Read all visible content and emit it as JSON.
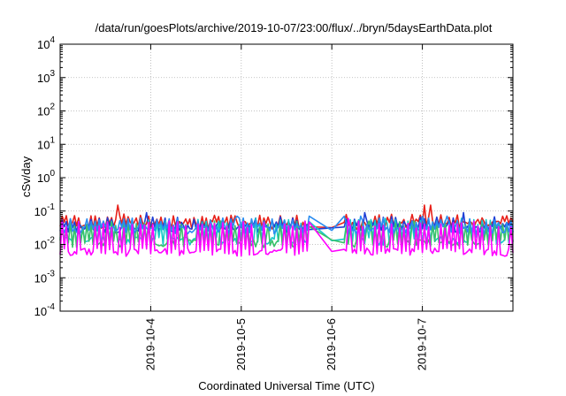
{
  "chart_data": {
    "type": "line",
    "title": "/data/run/goesPlots/archive/2019-10-07/23:00/flux/../bryn/5daysEarthData.plot",
    "xlabel": "Coordinated Universal Time (UTC)",
    "ylabel": "cSv/day",
    "yscale": "log",
    "ylim": [
      0.0001,
      10000
    ],
    "xlim": [
      "2019-10-03 00:00",
      "2019-10-08 00:00"
    ],
    "y_ticks": [
      {
        "value": 0.0001,
        "base": "10",
        "exp": "-4"
      },
      {
        "value": 0.001,
        "base": "10",
        "exp": "-3"
      },
      {
        "value": 0.01,
        "base": "10",
        "exp": "-2"
      },
      {
        "value": 0.1,
        "base": "10",
        "exp": "-1"
      },
      {
        "value": 1,
        "base": "10",
        "exp": "0"
      },
      {
        "value": 10,
        "base": "10",
        "exp": "1"
      },
      {
        "value": 100,
        "base": "10",
        "exp": "2"
      },
      {
        "value": 1000,
        "base": "10",
        "exp": "3"
      },
      {
        "value": 10000,
        "base": "10",
        "exp": "4"
      }
    ],
    "x_ticks": [
      "2019-10-4",
      "2019-10-5",
      "2019-10-6",
      "2019-10-7"
    ],
    "x_tick_values": [
      "2019-10-04",
      "2019-10-05",
      "2019-10-06",
      "2019-10-07"
    ],
    "grid": true,
    "series": [
      {
        "color": "#e8211a",
        "typical_high": 0.065,
        "typical_low": 0.035,
        "peak": 0.15
      },
      {
        "color": "#1f3fd6",
        "typical_high": 0.055,
        "typical_low": 0.028,
        "peak": 0.09
      },
      {
        "color": "#17c8c8",
        "typical_high": 0.045,
        "typical_low": 0.012,
        "peak": 0.06
      },
      {
        "color": "#3ac26a",
        "typical_high": 0.04,
        "typical_low": 0.01,
        "peak": 0.05
      },
      {
        "color": "#2a8cf0",
        "typical_high": 0.05,
        "typical_low": 0.025,
        "peak": 0.07
      },
      {
        "color": "#ff00ff",
        "typical_high": 0.04,
        "typical_low": 0.0055,
        "peak": 0.06
      }
    ],
    "gap_days": [
      "2019-10-05 18:00",
      "2019-10-06 03:00"
    ]
  }
}
